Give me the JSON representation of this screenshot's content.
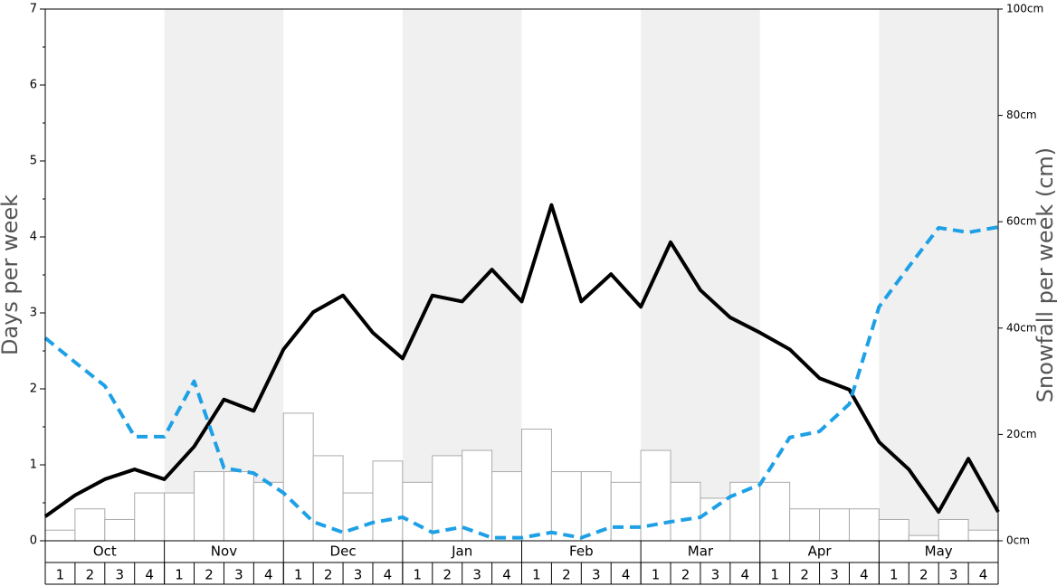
{
  "chart_data": {
    "type": "combo",
    "ylabel": "Days per week",
    "y2label": "Snowfall per week (cm)",
    "months": [
      "Oct",
      "Nov",
      "Dec",
      "Jan",
      "Feb",
      "Mar",
      "Apr",
      "May"
    ],
    "weeks": [
      1,
      2,
      3,
      4
    ],
    "ylim": [
      0,
      7
    ],
    "yticks": [
      0,
      1,
      2,
      3,
      4,
      5,
      6,
      7
    ],
    "y2lim": [
      0,
      100
    ],
    "y2ticks": [
      {
        "value": 0,
        "label": "0cm"
      },
      {
        "value": 20,
        "label": "20cm"
      },
      {
        "value": 40,
        "label": "40cm"
      },
      {
        "value": 60,
        "label": "60cm"
      },
      {
        "value": 80,
        "label": "80cm"
      },
      {
        "value": 100,
        "label": "100cm"
      }
    ],
    "shade_color": "#f0f0f0",
    "series": [
      {
        "type": "bar",
        "axis": "y2",
        "color": "#ffffff",
        "stroke": "#aaaaaa",
        "values": [
          2,
          6,
          4,
          9,
          9,
          13,
          13,
          11,
          24,
          16,
          9,
          15,
          11,
          16,
          17,
          13,
          21,
          13,
          13,
          11,
          17,
          11,
          8,
          11,
          11,
          6,
          6,
          6,
          4,
          1,
          4,
          2
        ]
      },
      {
        "type": "line",
        "color": "#000000",
        "dashed": false,
        "values": [
          0.32,
          0.6,
          0.81,
          0.94,
          0.81,
          1.24,
          1.86,
          1.71,
          2.52,
          3.01,
          3.23,
          2.74,
          2.4,
          3.23,
          3.15,
          3.57,
          3.15,
          4.42,
          3.15,
          3.51,
          3.08,
          3.93,
          3.3,
          2.94,
          2.74,
          2.52,
          2.14,
          1.99,
          1.3,
          0.94,
          0.38,
          1.08,
          0.38
        ]
      },
      {
        "type": "line",
        "color": "#1ea0e6",
        "dashed": true,
        "values": [
          2.67,
          2.35,
          2.04,
          1.37,
          1.37,
          2.1,
          0.96,
          0.89,
          0.63,
          0.25,
          0.11,
          0.24,
          0.31,
          0.11,
          0.18,
          0.04,
          0.04,
          0.11,
          0.04,
          0.18,
          0.18,
          0.25,
          0.31,
          0.58,
          0.74,
          1.36,
          1.44,
          1.8,
          3.08,
          3.61,
          4.12,
          4.06,
          4.13
        ]
      }
    ]
  }
}
